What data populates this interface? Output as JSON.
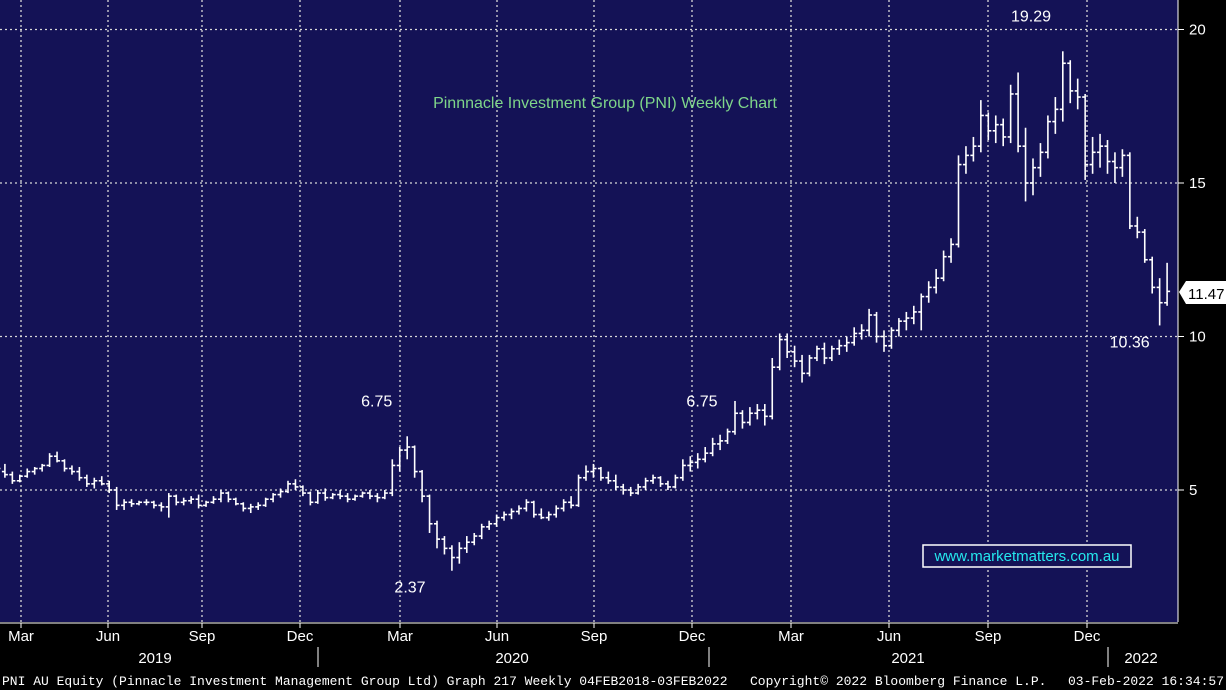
{
  "chart_data": {
    "type": "ohlc",
    "title": "Pinnnacle Investment Group (PNI) Weekly Chart",
    "watermark": "www.marketmatters.com.au",
    "last_price_tag": "11.47",
    "y_axis": {
      "side": "right",
      "range": [
        0,
        20
      ],
      "ticks": [
        5,
        10,
        15,
        20
      ]
    },
    "x_axis": {
      "month_ticks": [
        "Mar",
        "Jun",
        "Sep",
        "Dec",
        "Mar",
        "Jun",
        "Sep",
        "Dec",
        "Mar",
        "Jun",
        "Sep",
        "Dec"
      ],
      "year_labels": [
        "2019",
        "2020",
        "2021",
        "2022"
      ]
    },
    "annotations": [
      {
        "text": "6.75",
        "x": "2020-02",
        "y": 6.75
      },
      {
        "text": "2.37",
        "x": "2020-03",
        "y": 2.37
      },
      {
        "text": "6.75",
        "x": "2020-12",
        "y": 6.75
      },
      {
        "text": "19.29",
        "x": "2021-10",
        "y": 19.29
      },
      {
        "text": "10.36",
        "x": "2022-01",
        "y": 10.36
      }
    ],
    "series": [
      {
        "x_start": "2019-02",
        "x_step": "1 week",
        "values": [
          [
            4.95,
            5.1,
            4.85,
            5.0
          ],
          [
            5.0,
            5.9,
            4.95,
            5.7
          ],
          [
            5.6,
            5.85,
            5.4,
            5.5
          ],
          [
            5.5,
            5.6,
            5.2,
            5.3
          ],
          [
            5.3,
            5.5,
            5.25,
            5.45
          ],
          [
            5.45,
            5.7,
            5.4,
            5.6
          ],
          [
            5.6,
            5.75,
            5.5,
            5.7
          ],
          [
            5.7,
            5.85,
            5.6,
            5.8
          ],
          [
            5.8,
            6.2,
            5.75,
            6.1
          ],
          [
            6.1,
            6.25,
            5.9,
            5.95
          ],
          [
            5.95,
            6.0,
            5.6,
            5.7
          ],
          [
            5.7,
            5.8,
            5.5,
            5.6
          ],
          [
            5.6,
            5.75,
            5.3,
            5.4
          ],
          [
            5.4,
            5.5,
            5.1,
            5.2
          ],
          [
            5.2,
            5.4,
            5.05,
            5.3
          ],
          [
            5.3,
            5.45,
            5.15,
            5.2
          ],
          [
            5.2,
            5.3,
            4.9,
            5.0
          ],
          [
            5.0,
            5.1,
            4.35,
            4.5
          ],
          [
            4.5,
            4.7,
            4.35,
            4.6
          ],
          [
            4.6,
            4.7,
            4.45,
            4.55
          ],
          [
            4.55,
            4.65,
            4.5,
            4.6
          ],
          [
            4.6,
            4.7,
            4.5,
            4.6
          ],
          [
            4.6,
            4.65,
            4.4,
            4.5
          ],
          [
            4.5,
            4.6,
            4.3,
            4.45
          ],
          [
            4.45,
            4.9,
            4.1,
            4.8
          ],
          [
            4.8,
            4.85,
            4.5,
            4.6
          ],
          [
            4.6,
            4.75,
            4.5,
            4.65
          ],
          [
            4.65,
            4.8,
            4.55,
            4.7
          ],
          [
            4.7,
            4.85,
            4.4,
            4.5
          ],
          [
            4.5,
            4.65,
            4.45,
            4.6
          ],
          [
            4.6,
            4.8,
            4.55,
            4.7
          ],
          [
            4.7,
            5.0,
            4.6,
            4.9
          ],
          [
            4.9,
            4.95,
            4.6,
            4.7
          ],
          [
            4.7,
            4.75,
            4.5,
            4.55
          ],
          [
            4.55,
            4.6,
            4.3,
            4.4
          ],
          [
            4.4,
            4.55,
            4.25,
            4.45
          ],
          [
            4.45,
            4.6,
            4.35,
            4.5
          ],
          [
            4.5,
            4.75,
            4.45,
            4.7
          ],
          [
            4.7,
            4.9,
            4.6,
            4.85
          ],
          [
            4.85,
            5.05,
            4.75,
            4.95
          ],
          [
            4.95,
            5.3,
            4.9,
            5.2
          ],
          [
            5.2,
            5.35,
            5.0,
            5.1
          ],
          [
            5.1,
            5.15,
            4.8,
            4.9
          ],
          [
            4.9,
            4.95,
            4.5,
            4.6
          ],
          [
            4.6,
            5.0,
            4.55,
            4.9
          ],
          [
            4.9,
            5.05,
            4.65,
            4.75
          ],
          [
            4.75,
            4.9,
            4.7,
            4.85
          ],
          [
            4.85,
            5.0,
            4.7,
            4.8
          ],
          [
            4.8,
            4.9,
            4.6,
            4.7
          ],
          [
            4.7,
            4.85,
            4.65,
            4.8
          ],
          [
            4.8,
            4.95,
            4.75,
            4.9
          ],
          [
            4.9,
            5.0,
            4.7,
            4.8
          ],
          [
            4.8,
            4.9,
            4.6,
            4.75
          ],
          [
            4.75,
            5.0,
            4.7,
            4.9
          ],
          [
            4.9,
            6.0,
            4.8,
            5.8
          ],
          [
            5.8,
            6.4,
            5.6,
            6.3
          ],
          [
            6.3,
            6.75,
            6.0,
            6.4
          ],
          [
            6.4,
            6.45,
            5.4,
            5.6
          ],
          [
            5.6,
            5.65,
            4.6,
            4.8
          ],
          [
            4.8,
            4.85,
            3.6,
            3.9
          ],
          [
            3.9,
            4.0,
            3.1,
            3.4
          ],
          [
            3.4,
            3.5,
            2.9,
            3.1
          ],
          [
            3.1,
            3.2,
            2.37,
            2.8
          ],
          [
            2.8,
            3.3,
            2.6,
            3.1
          ],
          [
            3.1,
            3.5,
            2.95,
            3.3
          ],
          [
            3.3,
            3.6,
            3.2,
            3.5
          ],
          [
            3.5,
            3.9,
            3.4,
            3.8
          ],
          [
            3.8,
            4.0,
            3.7,
            3.9
          ],
          [
            3.9,
            4.2,
            3.8,
            4.1
          ],
          [
            4.1,
            4.3,
            4.0,
            4.2
          ],
          [
            4.2,
            4.4,
            4.05,
            4.3
          ],
          [
            4.3,
            4.5,
            4.2,
            4.4
          ],
          [
            4.4,
            4.7,
            4.3,
            4.6
          ],
          [
            4.6,
            4.65,
            4.1,
            4.2
          ],
          [
            4.2,
            4.4,
            4.05,
            4.1
          ],
          [
            4.1,
            4.3,
            4.0,
            4.2
          ],
          [
            4.2,
            4.5,
            4.1,
            4.4
          ],
          [
            4.4,
            4.7,
            4.3,
            4.6
          ],
          [
            4.6,
            4.8,
            4.4,
            4.5
          ],
          [
            4.5,
            5.5,
            4.45,
            5.4
          ],
          [
            5.4,
            5.8,
            5.3,
            5.6
          ],
          [
            5.6,
            5.85,
            5.4,
            5.7
          ],
          [
            5.7,
            5.75,
            5.3,
            5.4
          ],
          [
            5.4,
            5.6,
            5.2,
            5.3
          ],
          [
            5.3,
            5.5,
            5.0,
            5.1
          ],
          [
            5.1,
            5.2,
            4.85,
            5.0
          ],
          [
            5.0,
            5.1,
            4.8,
            4.9
          ],
          [
            4.9,
            5.2,
            4.85,
            5.1
          ],
          [
            5.1,
            5.4,
            5.0,
            5.3
          ],
          [
            5.3,
            5.5,
            5.2,
            5.4
          ],
          [
            5.4,
            5.45,
            5.1,
            5.2
          ],
          [
            5.2,
            5.3,
            5.0,
            5.1
          ],
          [
            5.1,
            5.5,
            5.05,
            5.4
          ],
          [
            5.4,
            6.0,
            5.3,
            5.8
          ],
          [
            5.8,
            6.1,
            5.6,
            5.9
          ],
          [
            5.9,
            6.2,
            5.7,
            6.0
          ],
          [
            6.0,
            6.4,
            5.9,
            6.2
          ],
          [
            6.2,
            6.7,
            6.1,
            6.5
          ],
          [
            6.5,
            6.8,
            6.3,
            6.6
          ],
          [
            6.6,
            7.0,
            6.5,
            6.9
          ],
          [
            6.9,
            7.9,
            6.8,
            7.5
          ],
          [
            7.5,
            7.6,
            7.0,
            7.2
          ],
          [
            7.2,
            7.7,
            7.1,
            7.5
          ],
          [
            7.5,
            7.8,
            7.3,
            7.6
          ],
          [
            7.6,
            7.8,
            7.1,
            7.4
          ],
          [
            7.4,
            9.3,
            7.3,
            9.0
          ],
          [
            9.0,
            10.1,
            8.9,
            9.9
          ],
          [
            9.9,
            10.1,
            9.3,
            9.5
          ],
          [
            9.5,
            9.7,
            9.0,
            9.2
          ],
          [
            9.2,
            9.4,
            8.5,
            8.8
          ],
          [
            8.8,
            9.4,
            8.7,
            9.3
          ],
          [
            9.3,
            9.7,
            9.2,
            9.6
          ],
          [
            9.6,
            9.8,
            9.1,
            9.3
          ],
          [
            9.3,
            9.7,
            9.2,
            9.6
          ],
          [
            9.6,
            9.9,
            9.4,
            9.7
          ],
          [
            9.7,
            10.0,
            9.5,
            9.8
          ],
          [
            9.8,
            10.3,
            9.7,
            10.1
          ],
          [
            10.1,
            10.4,
            9.9,
            10.2
          ],
          [
            10.2,
            10.9,
            10.0,
            10.7
          ],
          [
            10.7,
            10.8,
            9.8,
            10.0
          ],
          [
            10.0,
            10.2,
            9.5,
            9.7
          ],
          [
            9.7,
            10.3,
            9.6,
            10.2
          ],
          [
            10.2,
            10.6,
            10.0,
            10.5
          ],
          [
            10.5,
            10.8,
            10.2,
            10.6
          ],
          [
            10.6,
            11.0,
            10.4,
            10.8
          ],
          [
            10.8,
            11.4,
            10.2,
            11.3
          ],
          [
            11.3,
            11.8,
            11.1,
            11.6
          ],
          [
            11.6,
            12.2,
            11.4,
            11.9
          ],
          [
            11.9,
            12.8,
            11.8,
            12.6
          ],
          [
            12.6,
            13.2,
            12.4,
            13.0
          ],
          [
            13.0,
            15.9,
            12.9,
            15.6
          ],
          [
            15.6,
            16.2,
            15.3,
            15.9
          ],
          [
            15.9,
            16.5,
            15.7,
            16.2
          ],
          [
            16.2,
            17.7,
            16.0,
            17.2
          ],
          [
            17.2,
            17.3,
            16.4,
            16.7
          ],
          [
            16.7,
            17.2,
            16.3,
            16.9
          ],
          [
            16.9,
            17.1,
            16.2,
            16.5
          ],
          [
            16.5,
            18.2,
            16.3,
            17.9
          ],
          [
            17.9,
            18.6,
            16.0,
            16.2
          ],
          [
            16.2,
            16.8,
            14.4,
            15.0
          ],
          [
            15.0,
            15.8,
            14.6,
            15.5
          ],
          [
            15.5,
            16.3,
            15.2,
            16.0
          ],
          [
            16.0,
            17.2,
            15.8,
            17.0
          ],
          [
            17.0,
            17.8,
            16.6,
            17.4
          ],
          [
            17.4,
            19.29,
            17.0,
            18.9
          ],
          [
            18.9,
            19.0,
            17.6,
            18.0
          ],
          [
            18.0,
            18.4,
            17.4,
            17.8
          ],
          [
            17.8,
            17.9,
            15.1,
            15.6
          ],
          [
            15.6,
            16.5,
            15.3,
            16.0
          ],
          [
            16.0,
            16.6,
            15.5,
            16.2
          ],
          [
            16.2,
            16.4,
            15.3,
            15.7
          ],
          [
            15.7,
            16.0,
            15.0,
            15.5
          ],
          [
            15.5,
            16.1,
            15.2,
            15.9
          ],
          [
            15.9,
            16.0,
            13.5,
            13.6
          ],
          [
            13.6,
            13.9,
            13.2,
            13.4
          ],
          [
            13.4,
            13.5,
            12.4,
            12.5
          ],
          [
            12.5,
            12.6,
            11.4,
            11.6
          ],
          [
            11.6,
            11.9,
            10.36,
            11.1
          ],
          [
            11.1,
            12.4,
            11.0,
            11.47
          ]
        ]
      }
    ]
  },
  "footer": {
    "equity_text": "PNI AU Equity (Pinnacle Investment Management Group Ltd) Graph 217  Weekly 04FEB2018-03FEB2022",
    "copyright_text": "Copyright© 2022 Bloomberg Finance L.P.",
    "timestamp_text": "03-Feb-2022 16:34:57"
  },
  "colors": {
    "plot_bg": "#141256",
    "grid": "#d8d8d8",
    "bars": "#ffffff",
    "title": "#7fd68a",
    "axis_text": "#ffffff"
  }
}
